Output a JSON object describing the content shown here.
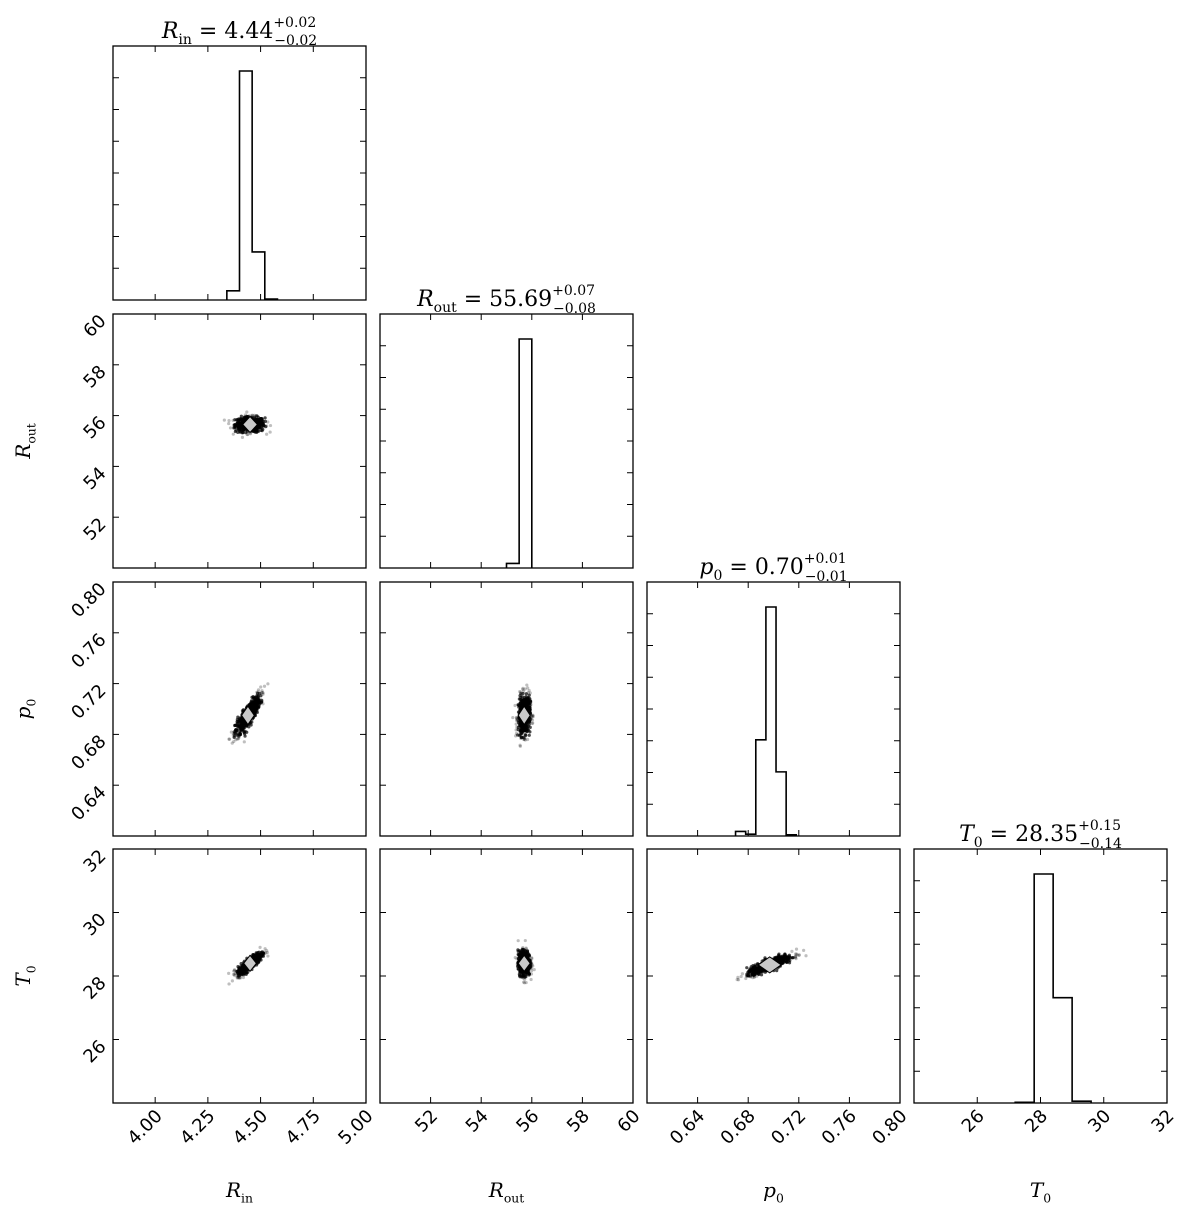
{
  "chart_data": {
    "type": "corner",
    "parameters": [
      {
        "symbol": "R",
        "sub": "in",
        "title_value": "4.44",
        "err_plus": "+0.02",
        "err_minus": "−0.02",
        "range": [
          3.8,
          5.0
        ],
        "ticks": [
          "4.00",
          "4.25",
          "4.50",
          "4.75",
          "5.00"
        ],
        "tick_values": [
          4.0,
          4.25,
          4.5,
          4.75,
          5.0
        ],
        "hist": {
          "edges": [
            4.34,
            4.4,
            4.46,
            4.52,
            4.58
          ],
          "counts": [
            0.04,
            1.0,
            0.21,
            0.004
          ]
        }
      },
      {
        "symbol": "R",
        "sub": "out",
        "title_value": "55.69",
        "err_plus": "+0.07",
        "err_minus": "−0.08",
        "range": [
          50,
          60
        ],
        "ticks": [
          "52",
          "54",
          "56",
          "58",
          "60"
        ],
        "tick_values": [
          52,
          54,
          56,
          58,
          60
        ],
        "hist": {
          "edges": [
            55.0,
            55.5,
            56.0
          ],
          "counts": [
            0.02,
            1.0
          ]
        }
      },
      {
        "symbol": "p",
        "sub": "0",
        "title_value": "0.70",
        "err_plus": "+0.01",
        "err_minus": "−0.01",
        "range": [
          0.6,
          0.8
        ],
        "ticks": [
          "0.64",
          "0.68",
          "0.72",
          "0.76",
          "0.80"
        ],
        "tick_values": [
          0.64,
          0.68,
          0.72,
          0.76,
          0.8
        ],
        "hist": {
          "edges": [
            0.67,
            0.678,
            0.686,
            0.694,
            0.702,
            0.71,
            0.718
          ],
          "counts": [
            0.02,
            0.008,
            0.42,
            1.0,
            0.28,
            0.005
          ]
        }
      },
      {
        "symbol": "T",
        "sub": "0",
        "title_value": "28.35",
        "err_plus": "+0.15",
        "err_minus": "−0.14",
        "range": [
          24,
          32
        ],
        "ticks": [
          "26",
          "28",
          "30",
          "32"
        ],
        "tick_values": [
          26,
          28,
          30,
          32
        ],
        "hist": {
          "edges": [
            27.2,
            27.8,
            28.4,
            29.0,
            29.6
          ],
          "counts": [
            0.003,
            1.0,
            0.46,
            0.008
          ]
        }
      }
    ],
    "scatter_panels": [
      {
        "x_param": 0,
        "y_param": 1,
        "center": [
          4.45,
          55.65
        ],
        "spread": [
          0.035,
          0.15
        ],
        "corr": 0.0
      },
      {
        "x_param": 0,
        "y_param": 2,
        "center": [
          4.44,
          0.695
        ],
        "spread": [
          0.03,
          0.008
        ],
        "corr": 0.85
      },
      {
        "x_param": 1,
        "y_param": 2,
        "center": [
          55.7,
          0.695
        ],
        "spread": [
          0.12,
          0.008
        ],
        "corr": 0.1
      },
      {
        "x_param": 0,
        "y_param": 3,
        "center": [
          4.45,
          28.4
        ],
        "spread": [
          0.03,
          0.18
        ],
        "corr": 0.85
      },
      {
        "x_param": 1,
        "y_param": 3,
        "center": [
          55.7,
          28.4
        ],
        "spread": [
          0.12,
          0.2
        ],
        "corr": 0.0
      },
      {
        "x_param": 2,
        "y_param": 3,
        "center": [
          0.697,
          28.35
        ],
        "spread": [
          0.009,
          0.16
        ],
        "corr": 0.85
      }
    ],
    "colors": {
      "axes": "#000000",
      "points": "#000000",
      "contour_fill": "#c8c8c8"
    }
  }
}
